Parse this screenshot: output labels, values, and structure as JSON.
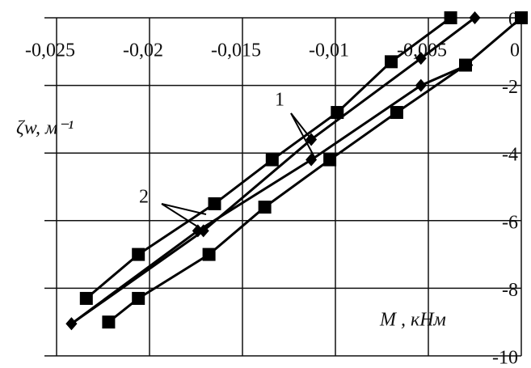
{
  "chart_data": {
    "type": "line",
    "x_label": "ζw, м⁻¹",
    "y_label": "M , кНм",
    "annotations": [
      "1",
      "2"
    ],
    "xlim": [
      -0.025,
      0
    ],
    "ylim": [
      -10,
      0
    ],
    "xticks": [
      {
        "value": -0.025,
        "label": "-0,025"
      },
      {
        "value": -0.02,
        "label": "-0,02"
      },
      {
        "value": -0.015,
        "label": "-0,015"
      },
      {
        "value": -0.01,
        "label": "-0,01"
      },
      {
        "value": -0.005,
        "label": "-0,005"
      },
      0
    ],
    "yticks": [
      0,
      -2,
      -4,
      -6,
      -8,
      -10
    ],
    "grid": true,
    "color": "#000000",
    "series": [
      {
        "marker": "square",
        "x": [
          -0.0038,
          -0.007,
          -0.0099,
          -0.0134,
          -0.0165,
          -0.0206,
          -0.0234
        ],
        "values": [
          0,
          -1.3,
          -2.8,
          -4.2,
          -5.5,
          -7,
          -8.3
        ]
      },
      {
        "marker": "square",
        "x": [
          0,
          -0.003,
          -0.0067,
          -0.0103,
          -0.0138,
          -0.0168,
          -0.0206,
          -0.0222
        ],
        "values": [
          0,
          -1.4,
          -2.8,
          -4.2,
          -5.6,
          -7,
          -8.3,
          -9
        ]
      },
      {
        "marker": "diamond",
        "x": [
          -0.0025,
          -0.0054,
          -0.0113,
          -0.0171,
          -0.0242
        ],
        "values": [
          0,
          -1.2,
          -3.6,
          -6.3,
          -9.05
        ]
      },
      {
        "marker": "diamond",
        "x": [
          -0.0029,
          -0.0054,
          -0.0113,
          -0.0174,
          -0.0242
        ],
        "values": [
          -1.4,
          -2,
          -4.2,
          -6.3,
          -9.05
        ]
      }
    ]
  }
}
